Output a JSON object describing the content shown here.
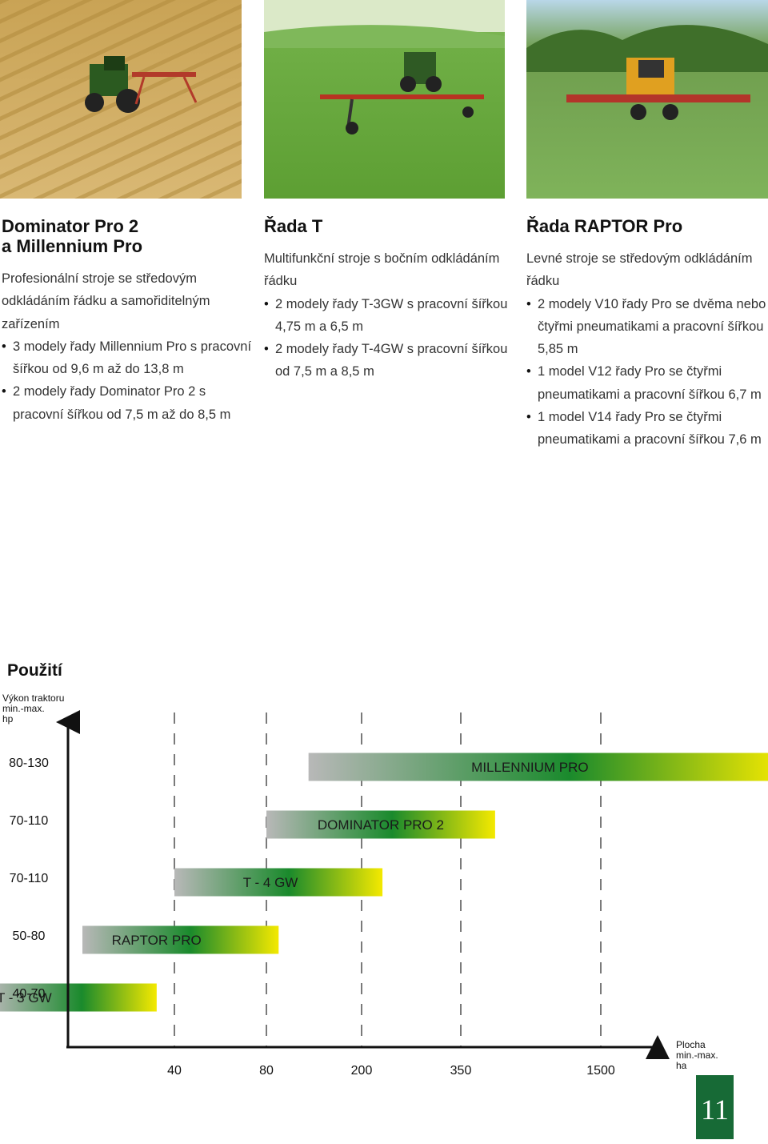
{
  "columns": [
    {
      "title_lines": [
        "Dominator Pro 2",
        "a Millennium Pro"
      ],
      "intro": "Profesionální stroje se středovým odkládáním řádku a samořiditelným zařízením",
      "bullets": [
        "3 modely řady Millennium Pro s pracovní šířkou od 9,6 m až do 13,8 m",
        "2 modely řady Dominator Pro 2 s pracovní šířkou od 7,5 m až do 8,5 m"
      ]
    },
    {
      "title_lines": [
        "Řada T"
      ],
      "intro": "Multifunkční stroje s bočním odkládáním řádku",
      "bullets": [
        "2 modely řady T-3GW s pracovní šířkou 4,75 m a 6,5 m",
        "2 modely řady T-4GW s pracovní šířkou od 7,5 m a 8,5 m"
      ]
    },
    {
      "title_lines": [
        "Řada RAPTOR Pro"
      ],
      "intro": "Levné stroje se středovým odkládáním řádku",
      "bullets": [
        "2 modely V10 řady Pro se dvěma nebo čtyřmi pneumatikami a pracovní šířkou 5,85 m",
        "1 model V12 řady Pro se čtyřmi pneumatikami a pracovní šířkou 6,7 m",
        "1 model V14 řady Pro se čtyřmi pneumatikami a pracovní šířkou 7,6 m"
      ]
    }
  ],
  "usage": {
    "title": "Použití"
  },
  "chart_data": {
    "type": "bar",
    "y_axis_label_lines": [
      "Výkon traktoru",
      "min.-max.",
      "hp"
    ],
    "x_axis_label_lines": [
      "Plocha",
      "min.-max.",
      "ha"
    ],
    "x_ticks": [
      "40",
      "80",
      "200",
      "350",
      "1500"
    ],
    "bars": [
      {
        "name": "MILLENNIUM PRO",
        "power_range": "80-130",
        "area_min_ha": 120,
        "area_max_ha": 10000
      },
      {
        "name": "DOMINATOR PRO 2",
        "power_range": "70-110",
        "area_min_ha": 80,
        "area_max_ha": 500
      },
      {
        "name": "T - 4 GW",
        "power_range": "70-110",
        "area_min_ha": 40,
        "area_max_ha": 225
      },
      {
        "name": "RAPTOR PRO",
        "power_range": "50-80",
        "area_min_ha": 20,
        "area_max_ha": 90
      },
      {
        "name": "T - 3 GW",
        "power_range": "40-70",
        "area_min_ha": 10,
        "area_max_ha": 35
      }
    ],
    "gradient_colors": [
      "#b8b8b8",
      "#1a8a2c",
      "#f4e900"
    ]
  },
  "page": {
    "number": "11",
    "accent_color": "#176a36"
  }
}
